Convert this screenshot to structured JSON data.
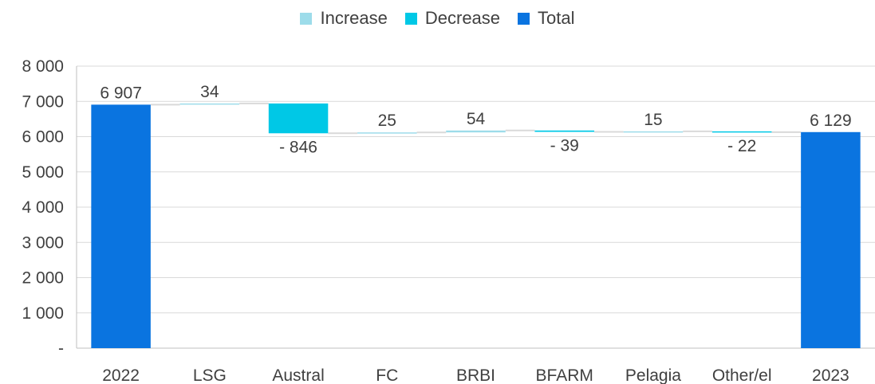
{
  "chart_data": {
    "type": "waterfall",
    "categories": [
      "2022",
      "LSG",
      "Austral",
      "FC",
      "BRBI",
      "BFARM",
      "Pelagia",
      "Other/el",
      "2023"
    ],
    "steps": [
      {
        "category": "2022",
        "kind": "total",
        "value": 6907,
        "label": "6 907"
      },
      {
        "category": "LSG",
        "kind": "increase",
        "value": 34,
        "label": "34"
      },
      {
        "category": "Austral",
        "kind": "decrease",
        "value": -846,
        "label": "- 846"
      },
      {
        "category": "FC",
        "kind": "increase",
        "value": 25,
        "label": "25"
      },
      {
        "category": "BRBI",
        "kind": "increase",
        "value": 54,
        "label": "54"
      },
      {
        "category": "BFARM",
        "kind": "decrease",
        "value": -39,
        "label": "- 39"
      },
      {
        "category": "Pelagia",
        "kind": "increase",
        "value": 15,
        "label": "15"
      },
      {
        "category": "Other/el",
        "kind": "decrease",
        "value": -22,
        "label": "- 22"
      },
      {
        "category": "2023",
        "kind": "total",
        "value": 6129,
        "label": "6 129"
      }
    ],
    "legend": [
      {
        "name": "Increase",
        "color": "#9ddcea"
      },
      {
        "name": "Decrease",
        "color": "#00c8e6"
      },
      {
        "name": "Total",
        "color": "#0a74e0"
      }
    ],
    "legend_position": "top",
    "ylim": [
      0,
      8000
    ],
    "y_ticks": [
      {
        "value": 0,
        "label": "-"
      },
      {
        "value": 1000,
        "label": "1 000"
      },
      {
        "value": 2000,
        "label": "2 000"
      },
      {
        "value": 3000,
        "label": "3 000"
      },
      {
        "value": 4000,
        "label": "4 000"
      },
      {
        "value": 5000,
        "label": "5 000"
      },
      {
        "value": 6000,
        "label": "6 000"
      },
      {
        "value": 7000,
        "label": "7 000"
      },
      {
        "value": 8000,
        "label": "8 000"
      }
    ],
    "grid": true,
    "colors": {
      "gridline": "#d9d9d9",
      "connector": "#d9d9d9",
      "text": "#404040"
    }
  }
}
